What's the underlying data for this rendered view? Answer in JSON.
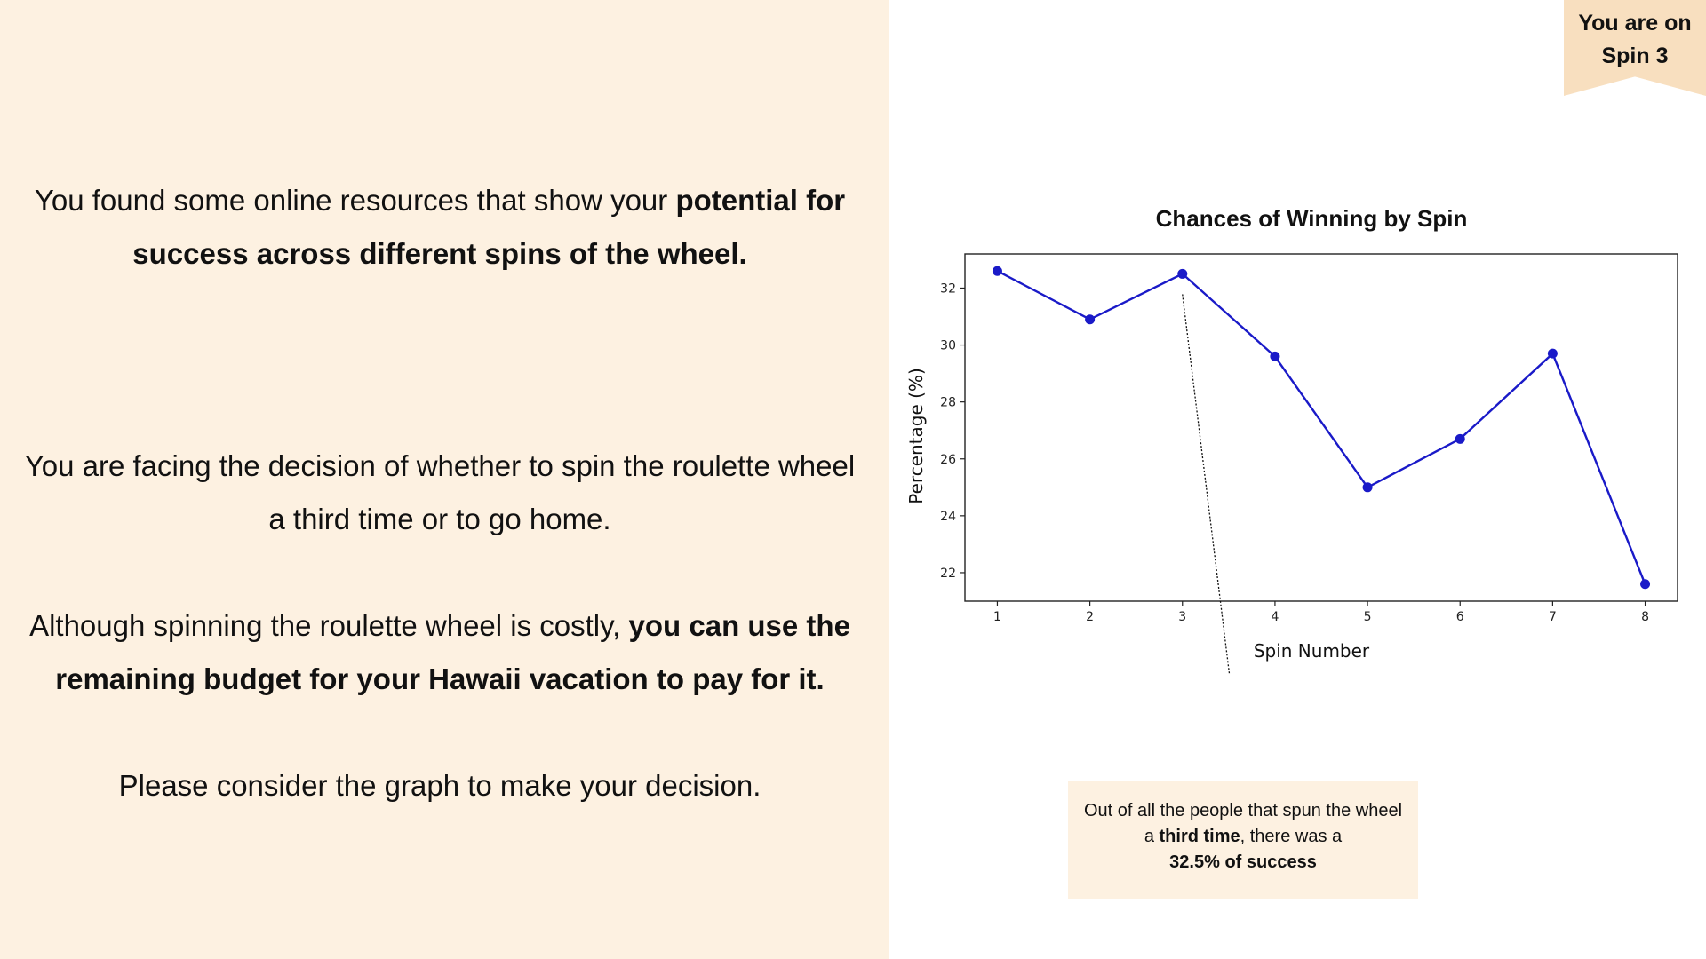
{
  "spin_badge": {
    "line1": "You are on",
    "line2": "Spin 3"
  },
  "left_panel": {
    "p1": {
      "plain1": "You found some online resources that show your ",
      "bold1": "potential for success across different spins of the wheel."
    },
    "p2": {
      "plain1": "You are facing the decision of whether to spin the roulette wheel a third time or to go home."
    },
    "p3": {
      "plain1": "Although spinning the roulette wheel is costly, ",
      "bold1": "you can use the remaining budget for your Hawaii vacation to pay for it."
    },
    "p4": {
      "plain1": "Please consider the graph to make your decision."
    }
  },
  "chart_data": {
    "type": "line",
    "title": "Chances of Winning by Spin",
    "xlabel": "Spin Number",
    "ylabel": "Percentage (%)",
    "x": [
      1,
      2,
      3,
      4,
      5,
      6,
      7,
      8
    ],
    "series": [
      {
        "values": [
          32.6,
          30.9,
          32.5,
          29.6,
          25.0,
          26.7,
          29.7,
          21.6
        ]
      }
    ],
    "xlim": [
      0.65,
      8.35
    ],
    "ylim": [
      21.0,
      33.2
    ],
    "yticks": [
      22,
      24,
      26,
      28,
      30,
      32
    ],
    "grid": false,
    "color": "#1a1ac8",
    "annotation": {
      "x": 3,
      "y": 32.5
    }
  },
  "callout": {
    "part1": "Out of all the people that spun the wheel a ",
    "bold1": "third time",
    "part2": ", there was a ",
    "bold2": "32.5% of success"
  }
}
